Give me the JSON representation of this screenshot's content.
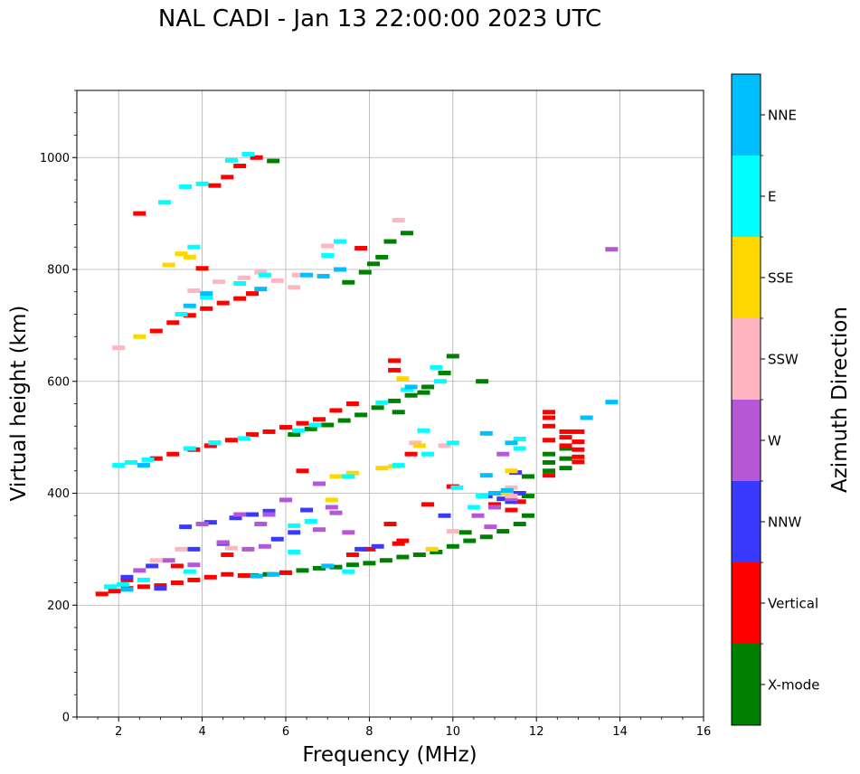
{
  "chart_data": {
    "type": "scatter",
    "title": "NAL CADI - Jan 13 22:00:00 2023 UTC",
    "xlabel": "Frequency (MHz)",
    "ylabel": "Virtual height (km)",
    "xlim": [
      1,
      16
    ],
    "ylim": [
      0,
      1120
    ],
    "xticks": [
      2,
      4,
      6,
      8,
      10,
      12,
      14,
      16
    ],
    "yticks": [
      0,
      200,
      400,
      600,
      800,
      1000
    ],
    "grid": true,
    "colorbar": {
      "label": "Azimuth Direction",
      "categories": [
        {
          "name": "X-mode",
          "color": "#008000"
        },
        {
          "name": "Vertical",
          "color": "#ff0000"
        },
        {
          "name": "NNW",
          "color": "#3a3aff"
        },
        {
          "name": "W",
          "color": "#b558d8"
        },
        {
          "name": "SSW",
          "color": "#ffb6c1"
        },
        {
          "name": "SSE",
          "color": "#ffd700"
        },
        {
          "name": "E",
          "color": "#00ffff"
        },
        {
          "name": "NNE",
          "color": "#00bfff"
        }
      ]
    },
    "series": [
      {
        "name": "X-mode",
        "points": [
          [
            5.2,
            253
          ],
          [
            5.6,
            255
          ],
          [
            6.0,
            258
          ],
          [
            6.4,
            262
          ],
          [
            6.8,
            266
          ],
          [
            7.2,
            268
          ],
          [
            7.6,
            272
          ],
          [
            8.0,
            275
          ],
          [
            8.4,
            280
          ],
          [
            8.8,
            286
          ],
          [
            9.2,
            290
          ],
          [
            9.6,
            295
          ],
          [
            10.0,
            305
          ],
          [
            10.4,
            315
          ],
          [
            10.8,
            322
          ],
          [
            11.2,
            332
          ],
          [
            11.6,
            345
          ],
          [
            11.8,
            360
          ],
          [
            11.8,
            395
          ],
          [
            11.8,
            430
          ],
          [
            12.3,
            470
          ],
          [
            12.3,
            455
          ],
          [
            12.3,
            440
          ],
          [
            12.7,
            480
          ],
          [
            12.7,
            462
          ],
          [
            12.7,
            445
          ],
          [
            6.2,
            505
          ],
          [
            6.6,
            515
          ],
          [
            7.0,
            522
          ],
          [
            7.4,
            530
          ],
          [
            7.8,
            540
          ],
          [
            8.2,
            553
          ],
          [
            8.6,
            565
          ],
          [
            9.0,
            575
          ],
          [
            9.4,
            590
          ],
          [
            9.8,
            615
          ],
          [
            10.0,
            645
          ],
          [
            7.5,
            777
          ],
          [
            7.9,
            795
          ],
          [
            8.1,
            810
          ],
          [
            8.5,
            850
          ],
          [
            8.9,
            865
          ],
          [
            5.7,
            994
          ],
          [
            8.3,
            822
          ],
          [
            8.7,
            545
          ],
          [
            9.3,
            580
          ],
          [
            10.7,
            600
          ],
          [
            10.3,
            330
          ]
        ]
      },
      {
        "name": "Vertical",
        "points": [
          [
            1.6,
            220
          ],
          [
            1.9,
            225
          ],
          [
            2.2,
            230
          ],
          [
            2.6,
            233
          ],
          [
            3.0,
            235
          ],
          [
            3.4,
            240
          ],
          [
            3.8,
            245
          ],
          [
            4.2,
            250
          ],
          [
            4.6,
            255
          ],
          [
            5.0,
            253
          ],
          [
            2.9,
            462
          ],
          [
            3.3,
            470
          ],
          [
            3.8,
            478
          ],
          [
            4.2,
            485
          ],
          [
            4.7,
            495
          ],
          [
            5.2,
            505
          ],
          [
            5.6,
            510
          ],
          [
            6.0,
            518
          ],
          [
            6.4,
            525
          ],
          [
            6.8,
            532
          ],
          [
            7.2,
            548
          ],
          [
            7.6,
            560
          ],
          [
            2.9,
            690
          ],
          [
            3.3,
            705
          ],
          [
            3.7,
            718
          ],
          [
            4.1,
            730
          ],
          [
            4.5,
            740
          ],
          [
            4.9,
            748
          ],
          [
            5.2,
            757
          ],
          [
            4.3,
            950
          ],
          [
            4.6,
            965
          ],
          [
            4.9,
            985
          ],
          [
            5.3,
            1000
          ],
          [
            12.3,
            545
          ],
          [
            12.3,
            535
          ],
          [
            12.3,
            520
          ],
          [
            12.3,
            495
          ],
          [
            12.3,
            432
          ],
          [
            12.7,
            510
          ],
          [
            12.7,
            500
          ],
          [
            12.7,
            485
          ],
          [
            13.0,
            510
          ],
          [
            13.0,
            492
          ],
          [
            13.0,
            478
          ],
          [
            13.0,
            465
          ],
          [
            13.0,
            456
          ],
          [
            11.0,
            380
          ],
          [
            11.4,
            370
          ],
          [
            11.6,
            385
          ],
          [
            9.4,
            380
          ],
          [
            8.5,
            345
          ],
          [
            8.8,
            315
          ],
          [
            8.0,
            300
          ],
          [
            7.6,
            290
          ],
          [
            9.0,
            470
          ],
          [
            8.6,
            620
          ],
          [
            8.6,
            637
          ],
          [
            2.5,
            900
          ],
          [
            6.4,
            440
          ],
          [
            6.0,
            258
          ],
          [
            2.2,
            245
          ],
          [
            3.4,
            270
          ],
          [
            4.6,
            290
          ],
          [
            7.8,
            838
          ],
          [
            4.0,
            802
          ],
          [
            10.0,
            412
          ],
          [
            8.7,
            310
          ]
        ]
      },
      {
        "name": "NNW",
        "points": [
          [
            3.6,
            340
          ],
          [
            4.2,
            348
          ],
          [
            4.8,
            356
          ],
          [
            5.2,
            362
          ],
          [
            5.6,
            368
          ],
          [
            3.8,
            300
          ],
          [
            4.5,
            310
          ],
          [
            5.8,
            318
          ],
          [
            2.8,
            270
          ],
          [
            2.2,
            250
          ],
          [
            9.8,
            360
          ],
          [
            10.8,
            395
          ],
          [
            11.2,
            390
          ],
          [
            11.4,
            385
          ],
          [
            11.6,
            400
          ],
          [
            8.2,
            305
          ],
          [
            7.8,
            300
          ],
          [
            6.2,
            330
          ],
          [
            3.0,
            230
          ],
          [
            4.3,
            490
          ],
          [
            6.5,
            370
          ],
          [
            11.5,
            437
          ]
        ]
      },
      {
        "name": "W",
        "points": [
          [
            6.8,
            417
          ],
          [
            10.6,
            360
          ],
          [
            11.2,
            470
          ],
          [
            13.8,
            836
          ],
          [
            4.0,
            345
          ],
          [
            4.9,
            362
          ],
          [
            5.4,
            345
          ],
          [
            5.5,
            305
          ],
          [
            6.8,
            335
          ],
          [
            7.2,
            365
          ],
          [
            3.2,
            280
          ],
          [
            3.8,
            272
          ],
          [
            4.5,
            312
          ],
          [
            6.0,
            388
          ],
          [
            7.5,
            330
          ],
          [
            11.4,
            390
          ],
          [
            11.0,
            375
          ],
          [
            10.9,
            340
          ],
          [
            2.5,
            262
          ],
          [
            5.1,
            300
          ],
          [
            7.1,
            375
          ],
          [
            5.6,
            362
          ]
        ]
      },
      {
        "name": "SSW",
        "points": [
          [
            8.7,
            888
          ],
          [
            7.0,
            842
          ],
          [
            5.0,
            785
          ],
          [
            3.8,
            762
          ],
          [
            4.4,
            778
          ],
          [
            5.8,
            780
          ],
          [
            6.3,
            790
          ],
          [
            10.0,
            332
          ],
          [
            9.8,
            485
          ],
          [
            3.5,
            300
          ],
          [
            4.7,
            302
          ],
          [
            2.9,
            280
          ],
          [
            11.4,
            410
          ],
          [
            11.4,
            395
          ],
          [
            9.1,
            490
          ],
          [
            2.0,
            660
          ],
          [
            6.2,
            768
          ],
          [
            5.4,
            795
          ]
        ]
      },
      {
        "name": "SSE",
        "points": [
          [
            8.3,
            445
          ],
          [
            7.2,
            430
          ],
          [
            7.6,
            436
          ],
          [
            7.1,
            388
          ],
          [
            9.2,
            485
          ],
          [
            3.7,
            822
          ],
          [
            3.5,
            828
          ],
          [
            3.2,
            808
          ],
          [
            8.8,
            605
          ],
          [
            11.4,
            440
          ],
          [
            8.6,
            448
          ],
          [
            2.5,
            680
          ],
          [
            9.5,
            300
          ],
          [
            11.2,
            400
          ]
        ]
      },
      {
        "name": "E",
        "points": [
          [
            2.0,
            450
          ],
          [
            2.3,
            455
          ],
          [
            2.7,
            460
          ],
          [
            3.7,
            480
          ],
          [
            4.3,
            490
          ],
          [
            5.0,
            498
          ],
          [
            6.3,
            512
          ],
          [
            6.7,
            522
          ],
          [
            8.3,
            562
          ],
          [
            8.9,
            585
          ],
          [
            9.7,
            600
          ],
          [
            10.0,
            490
          ],
          [
            11.6,
            497
          ],
          [
            11.6,
            480
          ],
          [
            9.4,
            470
          ],
          [
            8.7,
            450
          ],
          [
            3.1,
            920
          ],
          [
            3.6,
            948
          ],
          [
            4.0,
            953
          ],
          [
            4.7,
            995
          ],
          [
            5.1,
            1006
          ],
          [
            3.5,
            720
          ],
          [
            4.1,
            750
          ],
          [
            4.9,
            775
          ],
          [
            5.5,
            790
          ],
          [
            7.0,
            825
          ],
          [
            7.3,
            850
          ],
          [
            3.8,
            840
          ],
          [
            6.2,
            295
          ],
          [
            7.5,
            430
          ],
          [
            10.1,
            410
          ],
          [
            10.7,
            395
          ],
          [
            1.8,
            233
          ],
          [
            2.1,
            237
          ],
          [
            2.6,
            245
          ],
          [
            3.7,
            260
          ],
          [
            6.2,
            342
          ],
          [
            6.6,
            350
          ],
          [
            9.3,
            512
          ],
          [
            7.5,
            260
          ],
          [
            9.6,
            625
          ],
          [
            10.5,
            375
          ]
        ]
      },
      {
        "name": "NNE",
        "points": [
          [
            13.8,
            563
          ],
          [
            13.2,
            535
          ],
          [
            10.8,
            507
          ],
          [
            10.8,
            432
          ],
          [
            11.3,
            405
          ],
          [
            11.0,
            400
          ],
          [
            11.4,
            490
          ],
          [
            5.7,
            255
          ],
          [
            5.3,
            252
          ],
          [
            6.5,
            790
          ],
          [
            6.9,
            788
          ],
          [
            7.3,
            800
          ],
          [
            4.1,
            757
          ],
          [
            3.7,
            735
          ],
          [
            2.6,
            450
          ],
          [
            7.0,
            270
          ],
          [
            2.2,
            228
          ],
          [
            9.0,
            590
          ],
          [
            5.4,
            765
          ]
        ]
      }
    ]
  }
}
